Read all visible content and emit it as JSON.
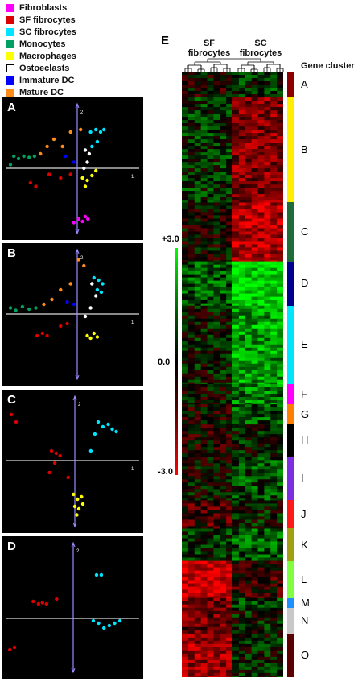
{
  "legend": [
    {
      "label": "Fibroblasts",
      "color": "#ff00ff"
    },
    {
      "label": "SF fibrocytes",
      "color": "#dd0000"
    },
    {
      "label": "SC fibrocytes",
      "color": "#00e5ff"
    },
    {
      "label": "Monocytes",
      "color": "#00a060"
    },
    {
      "label": "Macrophages",
      "color": "#ffff00"
    },
    {
      "label": "Ostoeclasts",
      "color": "#ffffff"
    },
    {
      "label": "Immature DC",
      "color": "#0000ff"
    },
    {
      "label": "Mature  DC",
      "color": "#ff8c1a"
    }
  ],
  "pca_panels": [
    {
      "letter": "A",
      "axis1_label": "1",
      "axis2_label": "2",
      "points": [
        {
          "group": "Monocytes",
          "pc1": -1.0,
          "pc2": 0.03
        },
        {
          "group": "Monocytes",
          "pc1": -0.95,
          "pc2": 0.1
        },
        {
          "group": "Monocytes",
          "pc1": -0.88,
          "pc2": 0.08
        },
        {
          "group": "Monocytes",
          "pc1": -0.8,
          "pc2": 0.1
        },
        {
          "group": "Monocytes",
          "pc1": -0.72,
          "pc2": 0.09
        },
        {
          "group": "Monocytes",
          "pc1": -0.64,
          "pc2": 0.1
        },
        {
          "group": "Mature  DC",
          "pc1": -0.55,
          "pc2": 0.12
        },
        {
          "group": "Mature  DC",
          "pc1": -0.45,
          "pc2": 0.18
        },
        {
          "group": "Mature  DC",
          "pc1": -0.35,
          "pc2": 0.24
        },
        {
          "group": "Mature  DC",
          "pc1": -0.22,
          "pc2": 0.18
        },
        {
          "group": "Mature  DC",
          "pc1": -0.1,
          "pc2": 0.3
        },
        {
          "group": "Mature  DC",
          "pc1": 0.05,
          "pc2": 0.32
        },
        {
          "group": "Immature DC",
          "pc1": -0.18,
          "pc2": 0.1
        },
        {
          "group": "Immature DC",
          "pc1": -0.05,
          "pc2": 0.05
        },
        {
          "group": "SC fibrocytes",
          "pc1": 0.2,
          "pc2": 0.3
        },
        {
          "group": "SC fibrocytes",
          "pc1": 0.28,
          "pc2": 0.32
        },
        {
          "group": "SC fibrocytes",
          "pc1": 0.35,
          "pc2": 0.3
        },
        {
          "group": "SC fibrocytes",
          "pc1": 0.4,
          "pc2": 0.32
        },
        {
          "group": "SC fibrocytes",
          "pc1": 0.3,
          "pc2": 0.22
        },
        {
          "group": "SC fibrocytes",
          "pc1": 0.22,
          "pc2": 0.18
        },
        {
          "group": "Ostoeclasts",
          "pc1": 0.12,
          "pc2": 0.15
        },
        {
          "group": "Ostoeclasts",
          "pc1": 0.18,
          "pc2": 0.12
        },
        {
          "group": "Ostoeclasts",
          "pc1": 0.15,
          "pc2": 0.05
        },
        {
          "group": "Ostoeclasts",
          "pc1": 0.1,
          "pc2": 0.0
        },
        {
          "group": "SF fibrocytes",
          "pc1": -0.7,
          "pc2": -0.12
        },
        {
          "group": "SF fibrocytes",
          "pc1": -0.62,
          "pc2": -0.15
        },
        {
          "group": "SF fibrocytes",
          "pc1": -0.42,
          "pc2": -0.05
        },
        {
          "group": "SF fibrocytes",
          "pc1": -0.25,
          "pc2": -0.08
        },
        {
          "group": "SF fibrocytes",
          "pc1": -0.1,
          "pc2": -0.05
        },
        {
          "group": "Macrophages",
          "pc1": 0.08,
          "pc2": -0.08
        },
        {
          "group": "Macrophages",
          "pc1": 0.15,
          "pc2": -0.1
        },
        {
          "group": "Macrophages",
          "pc1": 0.22,
          "pc2": -0.06
        },
        {
          "group": "Macrophages",
          "pc1": 0.12,
          "pc2": -0.15
        },
        {
          "group": "Macrophages",
          "pc1": 0.28,
          "pc2": -0.02
        },
        {
          "group": "Fibroblasts",
          "pc1": -0.05,
          "pc2": -0.45
        },
        {
          "group": "Fibroblasts",
          "pc1": 0.02,
          "pc2": -0.42
        },
        {
          "group": "Fibroblasts",
          "pc1": 0.08,
          "pc2": -0.44
        },
        {
          "group": "Fibroblasts",
          "pc1": 0.12,
          "pc2": -0.4
        },
        {
          "group": "Fibroblasts",
          "pc1": 0.16,
          "pc2": -0.42
        }
      ]
    },
    {
      "letter": "B",
      "axis1_label": "1",
      "axis2_label": "2",
      "points": [
        {
          "group": "Monocytes",
          "pc1": -1.0,
          "pc2": 0.05
        },
        {
          "group": "Monocytes",
          "pc1": -0.92,
          "pc2": 0.03
        },
        {
          "group": "Monocytes",
          "pc1": -0.82,
          "pc2": 0.06
        },
        {
          "group": "Monocytes",
          "pc1": -0.72,
          "pc2": 0.04
        },
        {
          "group": "Monocytes",
          "pc1": -0.62,
          "pc2": 0.05
        },
        {
          "group": "Mature  DC",
          "pc1": -0.5,
          "pc2": 0.08
        },
        {
          "group": "Mature  DC",
          "pc1": -0.38,
          "pc2": 0.12
        },
        {
          "group": "Mature  DC",
          "pc1": -0.25,
          "pc2": 0.2
        },
        {
          "group": "Mature  DC",
          "pc1": -0.1,
          "pc2": 0.25
        },
        {
          "group": "Mature  DC",
          "pc1": 0.02,
          "pc2": 0.45
        },
        {
          "group": "Mature  DC",
          "pc1": 0.1,
          "pc2": 0.4
        },
        {
          "group": "Immature DC",
          "pc1": -0.15,
          "pc2": 0.1
        },
        {
          "group": "Immature DC",
          "pc1": -0.05,
          "pc2": 0.08
        },
        {
          "group": "SC fibrocytes",
          "pc1": 0.25,
          "pc2": 0.3
        },
        {
          "group": "SC fibrocytes",
          "pc1": 0.32,
          "pc2": 0.28
        },
        {
          "group": "SC fibrocytes",
          "pc1": 0.38,
          "pc2": 0.25
        },
        {
          "group": "SC fibrocytes",
          "pc1": 0.3,
          "pc2": 0.2
        },
        {
          "group": "SC fibrocytes",
          "pc1": 0.36,
          "pc2": 0.18
        },
        {
          "group": "Ostoeclasts",
          "pc1": 0.22,
          "pc2": 0.25
        },
        {
          "group": "Ostoeclasts",
          "pc1": 0.28,
          "pc2": 0.15
        },
        {
          "group": "Ostoeclasts",
          "pc1": 0.2,
          "pc2": 0.05
        },
        {
          "group": "Ostoeclasts",
          "pc1": 0.12,
          "pc2": -0.02
        },
        {
          "group": "SF fibrocytes",
          "pc1": -0.6,
          "pc2": -0.18
        },
        {
          "group": "SF fibrocytes",
          "pc1": -0.52,
          "pc2": -0.16
        },
        {
          "group": "SF fibrocytes",
          "pc1": -0.45,
          "pc2": -0.18
        },
        {
          "group": "SF fibrocytes",
          "pc1": -0.25,
          "pc2": -0.1
        },
        {
          "group": "SF fibrocytes",
          "pc1": -0.15,
          "pc2": -0.08
        },
        {
          "group": "Macrophages",
          "pc1": 0.15,
          "pc2": -0.18
        },
        {
          "group": "Macrophages",
          "pc1": 0.2,
          "pc2": -0.2
        },
        {
          "group": "Macrophages",
          "pc1": 0.25,
          "pc2": -0.16
        },
        {
          "group": "Macrophages",
          "pc1": 0.3,
          "pc2": -0.19
        }
      ]
    },
    {
      "letter": "C",
      "axis1_label": "1",
      "axis2_label": "2",
      "points": [
        {
          "group": "SF fibrocytes",
          "pc1": -0.95,
          "pc2": 0.38
        },
        {
          "group": "SF fibrocytes",
          "pc1": -0.88,
          "pc2": 0.32
        },
        {
          "group": "SF fibrocytes",
          "pc1": -0.35,
          "pc2": 0.08
        },
        {
          "group": "SF fibrocytes",
          "pc1": -0.28,
          "pc2": 0.06
        },
        {
          "group": "SF fibrocytes",
          "pc1": -0.22,
          "pc2": 0.04
        },
        {
          "group": "SF fibrocytes",
          "pc1": -0.3,
          "pc2": -0.02
        },
        {
          "group": "SF fibrocytes",
          "pc1": -0.38,
          "pc2": -0.1
        },
        {
          "group": "SF fibrocytes",
          "pc1": -0.1,
          "pc2": -0.14
        },
        {
          "group": "SC fibrocytes",
          "pc1": 0.35,
          "pc2": 0.32
        },
        {
          "group": "SC fibrocytes",
          "pc1": 0.42,
          "pc2": 0.28
        },
        {
          "group": "SC fibrocytes",
          "pc1": 0.5,
          "pc2": 0.3
        },
        {
          "group": "SC fibrocytes",
          "pc1": 0.56,
          "pc2": 0.26
        },
        {
          "group": "SC fibrocytes",
          "pc1": 0.62,
          "pc2": 0.24
        },
        {
          "group": "SC fibrocytes",
          "pc1": 0.3,
          "pc2": 0.22
        },
        {
          "group": "SC fibrocytes",
          "pc1": 0.24,
          "pc2": 0.08
        },
        {
          "group": "Macrophages",
          "pc1": -0.02,
          "pc2": -0.28
        },
        {
          "group": "Macrophages",
          "pc1": 0.04,
          "pc2": -0.32
        },
        {
          "group": "Macrophages",
          "pc1": 0.1,
          "pc2": -0.3
        },
        {
          "group": "Macrophages",
          "pc1": 0.0,
          "pc2": -0.38
        },
        {
          "group": "Macrophages",
          "pc1": 0.06,
          "pc2": -0.4
        },
        {
          "group": "Macrophages",
          "pc1": 0.12,
          "pc2": -0.36
        },
        {
          "group": "Macrophages",
          "pc1": 0.03,
          "pc2": -0.45
        }
      ]
    },
    {
      "letter": "D",
      "axis1_label": "",
      "axis2_label": "2",
      "points": [
        {
          "group": "SF fibrocytes",
          "pc1": -0.6,
          "pc2": 0.14
        },
        {
          "group": "SF fibrocytes",
          "pc1": -0.52,
          "pc2": 0.12
        },
        {
          "group": "SF fibrocytes",
          "pc1": -0.46,
          "pc2": 0.13
        },
        {
          "group": "SF fibrocytes",
          "pc1": -0.4,
          "pc2": 0.12
        },
        {
          "group": "SF fibrocytes",
          "pc1": -0.25,
          "pc2": 0.16
        },
        {
          "group": "SF fibrocytes",
          "pc1": -0.95,
          "pc2": -0.26
        },
        {
          "group": "SF fibrocytes",
          "pc1": -0.88,
          "pc2": -0.24
        },
        {
          "group": "SC fibrocytes",
          "pc1": 0.35,
          "pc2": 0.36
        },
        {
          "group": "SC fibrocytes",
          "pc1": 0.42,
          "pc2": 0.36
        },
        {
          "group": "SC fibrocytes",
          "pc1": 0.38,
          "pc2": -0.04
        },
        {
          "group": "SC fibrocytes",
          "pc1": 0.46,
          "pc2": -0.08
        },
        {
          "group": "SC fibrocytes",
          "pc1": 0.54,
          "pc2": -0.06
        },
        {
          "group": "SC fibrocytes",
          "pc1": 0.62,
          "pc2": -0.04
        },
        {
          "group": "SC fibrocytes",
          "pc1": 0.7,
          "pc2": -0.02
        },
        {
          "group": "SC fibrocytes",
          "pc1": 0.3,
          "pc2": -0.02
        }
      ]
    }
  ],
  "heatmap": {
    "letter": "E",
    "columns": [
      "SF\nfibrocytes",
      "SC\nfibrocytes"
    ],
    "scale": {
      "max_label": "+3.0",
      "mid_label": "0.0",
      "min_label": "-3.0"
    },
    "gene_cluster_title": "Gene cluster",
    "clusters": [
      {
        "name": "A",
        "size": 32,
        "sf": -0.2,
        "sc": 0.5,
        "color": "#8b0000"
      },
      {
        "name": "B",
        "size": 130,
        "sf": 0.5,
        "sc": -1.5,
        "color": "#ffee00"
      },
      {
        "name": "C",
        "size": 73,
        "sf": -0.1,
        "sc": -2.0,
        "color": "#1f6b3a"
      },
      {
        "name": "D",
        "size": 55,
        "sf": 1.0,
        "sc": 2.6,
        "color": "#00008b"
      },
      {
        "name": "E",
        "size": 97,
        "sf": 0.2,
        "sc": 1.8,
        "color": "#00e5ff"
      },
      {
        "name": "F",
        "size": 25,
        "sf": 0.0,
        "sc": 1.4,
        "color": "#ff00ff"
      },
      {
        "name": "G",
        "size": 25,
        "sf": -0.2,
        "sc": 1.0,
        "color": "#ff7f00"
      },
      {
        "name": "H",
        "size": 40,
        "sf": -0.3,
        "sc": 0.2,
        "color": "#000000"
      },
      {
        "name": "I",
        "size": 54,
        "sf": 0.0,
        "sc": 0.8,
        "color": "#7b2fe0"
      },
      {
        "name": "J",
        "size": 35,
        "sf": -0.8,
        "sc": 0.2,
        "color": "#ff1a1a"
      },
      {
        "name": "K",
        "size": 40,
        "sf": 0.4,
        "sc": 1.0,
        "color": "#a0a010"
      },
      {
        "name": "L",
        "size": 46,
        "sf": -2.5,
        "sc": -0.6,
        "color": "#80ff40"
      },
      {
        "name": "M",
        "size": 12,
        "sf": -1.5,
        "sc": 0.6,
        "color": "#1e90ff"
      },
      {
        "name": "N",
        "size": 33,
        "sf": -1.2,
        "sc": 0.2,
        "color": "#c8c8c8"
      },
      {
        "name": "O",
        "size": 53,
        "sf": -1.8,
        "sc": 0.3,
        "color": "#5a0000"
      }
    ]
  }
}
